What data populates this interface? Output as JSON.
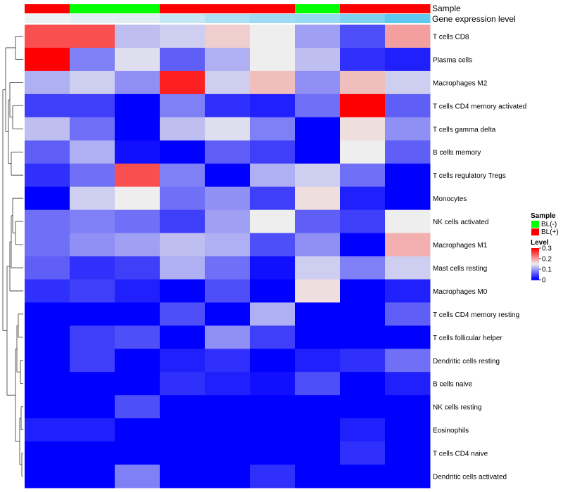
{
  "chart_data": {
    "type": "heatmap",
    "title": "",
    "annotation_labels": {
      "sample": "Sample",
      "expression": "Gene expression level"
    },
    "sample_annotation": [
      "BL(+)",
      "BL(-)",
      "BL(-)",
      "BL(+)",
      "BL(+)",
      "BL(+)",
      "BL(-)",
      "BL(+)",
      "BL(+)"
    ],
    "expression_annotation": [
      0.05,
      0.12,
      0.14,
      0.3,
      0.45,
      0.55,
      0.6,
      0.75,
      0.95
    ],
    "rows": [
      "T cells CD8",
      "Plasma cells",
      "Macrophages M2",
      "T cells CD4 memory activated",
      "T cells gamma delta",
      "B cells memory",
      "T cells regulatory  Tregs",
      "Monocytes",
      "NK cells activated",
      "Macrophages M1",
      "Mast cells resting",
      "Macrophages M0",
      "T cells CD4 memory resting",
      "T cells follicular helper",
      "Dendritic cells resting",
      "B cells naive",
      "NK cells resting",
      "Eosinophils",
      "T cells CD4 naive",
      "Dendritic cells activated"
    ],
    "values": [
      [
        0.25,
        0.25,
        0.12,
        0.13,
        0.17,
        0.15,
        0.1,
        0.05,
        0.2
      ],
      [
        0.3,
        0.08,
        0.14,
        0.06,
        0.11,
        0.15,
        0.12,
        0.03,
        0.02
      ],
      [
        0.11,
        0.13,
        0.09,
        0.28,
        0.13,
        0.18,
        0.09,
        0.18,
        0.13
      ],
      [
        0.04,
        0.04,
        0.0,
        0.08,
        0.03,
        0.02,
        0.07,
        0.3,
        0.06
      ],
      [
        0.12,
        0.07,
        0.0,
        0.12,
        0.14,
        0.08,
        0.0,
        0.16,
        0.09
      ],
      [
        0.06,
        0.11,
        0.01,
        0.0,
        0.06,
        0.04,
        0.0,
        0.15,
        0.06
      ],
      [
        0.03,
        0.07,
        0.25,
        0.08,
        0.0,
        0.11,
        0.13,
        0.07,
        0.0
      ],
      [
        0.0,
        0.13,
        0.15,
        0.07,
        0.09,
        0.04,
        0.16,
        0.02,
        0.0
      ],
      [
        0.07,
        0.08,
        0.07,
        0.04,
        0.1,
        0.15,
        0.06,
        0.04,
        0.15
      ],
      [
        0.07,
        0.09,
        0.1,
        0.12,
        0.11,
        0.05,
        0.09,
        0.0,
        0.19
      ],
      [
        0.06,
        0.03,
        0.04,
        0.11,
        0.07,
        0.01,
        0.13,
        0.08,
        0.13
      ],
      [
        0.03,
        0.04,
        0.02,
        0.0,
        0.05,
        0.0,
        0.16,
        0.0,
        0.02
      ],
      [
        0.0,
        0.0,
        0.0,
        0.05,
        0.0,
        0.11,
        0.0,
        0.0,
        0.06
      ],
      [
        0.0,
        0.04,
        0.05,
        0.0,
        0.09,
        0.04,
        0.0,
        0.0,
        0.0
      ],
      [
        0.0,
        0.04,
        0.0,
        0.02,
        0.03,
        0.0,
        0.02,
        0.03,
        0.07
      ],
      [
        0.0,
        0.0,
        0.0,
        0.03,
        0.02,
        0.01,
        0.05,
        0.0,
        0.02
      ],
      [
        0.0,
        0.0,
        0.05,
        0.0,
        0.0,
        0.0,
        0.0,
        0.0,
        0.0
      ],
      [
        0.02,
        0.02,
        0.0,
        0.0,
        0.0,
        0.0,
        0.0,
        0.02,
        0.0
      ],
      [
        0.0,
        0.0,
        0.0,
        0.0,
        0.0,
        0.0,
        0.0,
        0.03,
        0.0
      ],
      [
        0.0,
        0.0,
        0.08,
        0.0,
        0.0,
        0.03,
        0.0,
        0.0,
        0.0
      ]
    ],
    "color_scale": {
      "min": 0,
      "mid": 0.15,
      "max": 0.3
    },
    "colors": {
      "low": "#0000ff",
      "mid": "#eeeeee",
      "high": "#ff0000",
      "bl_pos": "#ff0000",
      "bl_neg": "#00ff00",
      "expr_low": "#f5f5f5",
      "expr_high": "#56c6f0",
      "dendro": "#333333"
    },
    "legend": {
      "sample_title": "Sample",
      "sample_items": [
        "BL(-)",
        "BL(+)"
      ],
      "level_title": "Level",
      "level_ticks": [
        "0.3",
        "0.2",
        "0.1",
        "0"
      ],
      "level_tick_values": [
        0.3,
        0.2,
        0.1,
        0
      ],
      "placement": "right"
    }
  }
}
